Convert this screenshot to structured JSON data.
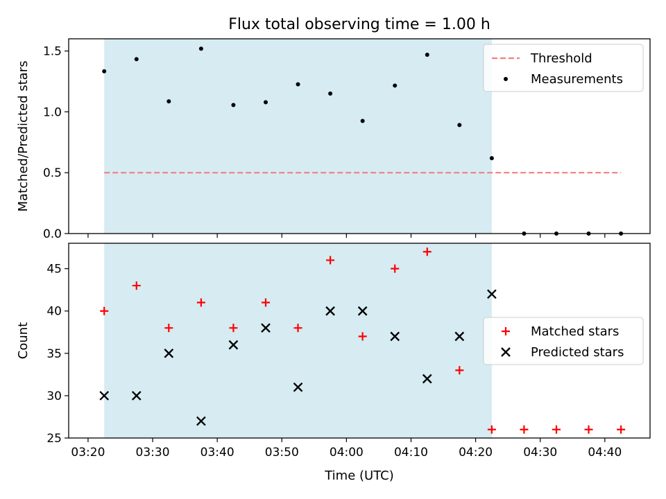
{
  "title": "Flux total observing time = 1.00 h",
  "xlabel": "Time (UTC)",
  "colors": {
    "shade": "#add8e6",
    "threshold": "#f08080",
    "measurement": "#000000",
    "matched": "#ff0000",
    "predicted": "#000000"
  },
  "chart_data": [
    {
      "type": "scatter",
      "panel": "top",
      "ylabel": "Matched/Predicted stars",
      "xlim": [
        "03:17",
        "04:47"
      ],
      "ylim": [
        0,
        1.6
      ],
      "yticks": [
        0.0,
        0.5,
        1.0,
        1.5
      ],
      "ytick_labels": [
        "0.0",
        "0.5",
        "1.0",
        "1.5"
      ],
      "xticks": [
        "03:20",
        "03:30",
        "03:40",
        "03:50",
        "04:00",
        "04:10",
        "04:20",
        "04:30",
        "04:40"
      ],
      "shaded_span": [
        "03:22:30",
        "04:22:30"
      ],
      "legend": {
        "placement": "upper right",
        "entries": [
          "Threshold",
          "Measurements"
        ]
      },
      "threshold": {
        "name": "Threshold",
        "value": 0.5,
        "x": [
          "03:22:30",
          "04:42:30"
        ],
        "style": "dashed"
      },
      "series": [
        {
          "name": "Measurements",
          "marker": "dot",
          "x": [
            "03:22:30",
            "03:27:30",
            "03:32:30",
            "03:37:30",
            "03:42:30",
            "03:47:30",
            "03:52:30",
            "03:57:30",
            "04:02:30",
            "04:07:30",
            "04:12:30",
            "04:17:30",
            "04:22:30",
            "04:27:30",
            "04:32:30",
            "04:37:30",
            "04:42:30"
          ],
          "values": [
            1.333,
            1.433,
            1.086,
            1.519,
            1.056,
            1.079,
            1.226,
            1.15,
            0.925,
            1.216,
            1.469,
            0.892,
            0.619,
            0,
            0,
            0,
            0
          ]
        }
      ]
    },
    {
      "type": "scatter",
      "panel": "bottom",
      "ylabel": "Count",
      "xlim": [
        "03:17",
        "04:47"
      ],
      "ylim": [
        25,
        48
      ],
      "yticks": [
        25,
        30,
        35,
        40,
        45
      ],
      "ytick_labels": [
        "25",
        "30",
        "35",
        "40",
        "45"
      ],
      "xticks": [
        "03:20",
        "03:30",
        "03:40",
        "03:50",
        "04:00",
        "04:10",
        "04:20",
        "04:30",
        "04:40"
      ],
      "xtick_labels": [
        "03:20",
        "03:30",
        "03:40",
        "03:50",
        "04:00",
        "04:10",
        "04:20",
        "04:30",
        "04:40"
      ],
      "shaded_span": [
        "03:22:30",
        "04:22:30"
      ],
      "legend": {
        "placement": "center right",
        "entries": [
          "Matched stars",
          "Predicted stars"
        ]
      },
      "series": [
        {
          "name": "Matched stars",
          "marker": "plus",
          "x": [
            "03:22:30",
            "03:27:30",
            "03:32:30",
            "03:37:30",
            "03:42:30",
            "03:47:30",
            "03:52:30",
            "03:57:30",
            "04:02:30",
            "04:07:30",
            "04:12:30",
            "04:17:30",
            "04:22:30",
            "04:27:30",
            "04:32:30",
            "04:37:30",
            "04:42:30"
          ],
          "values": [
            40,
            43,
            38,
            41,
            38,
            41,
            38,
            46,
            37,
            45,
            47,
            33,
            26,
            26,
            26,
            26,
            26
          ]
        },
        {
          "name": "Predicted stars",
          "marker": "x",
          "x": [
            "03:22:30",
            "03:27:30",
            "03:32:30",
            "03:37:30",
            "03:42:30",
            "03:47:30",
            "03:52:30",
            "03:57:30",
            "04:02:30",
            "04:07:30",
            "04:12:30",
            "04:17:30",
            "04:22:30"
          ],
          "values": [
            30,
            30,
            35,
            27,
            36,
            38,
            31,
            40,
            40,
            37,
            32,
            37,
            42
          ]
        }
      ]
    }
  ]
}
